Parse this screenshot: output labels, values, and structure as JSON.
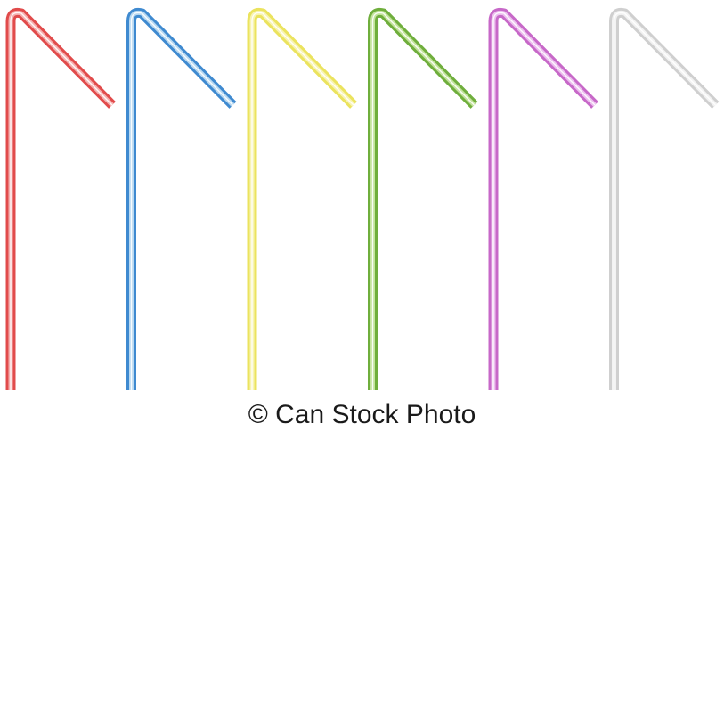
{
  "image": {
    "background": "#ffffff",
    "straws": [
      {
        "color_name": "red",
        "outer": "#e14b4b",
        "inner": "#f5b0b0"
      },
      {
        "color_name": "blue",
        "outer": "#3f8ad0",
        "inner": "#b9d9f1"
      },
      {
        "color_name": "yellow",
        "outer": "#ebe35e",
        "inner": "#f8f4b4"
      },
      {
        "color_name": "green",
        "outer": "#6fae3c",
        "inner": "#c4e39d"
      },
      {
        "color_name": "purple",
        "outer": "#c768c8",
        "inner": "#ecc0ee"
      },
      {
        "color_name": "white",
        "outer": "#cfcfcf",
        "inner": "#f2f2f2"
      }
    ]
  },
  "watermark": {
    "text": "© Can Stock Photo"
  }
}
